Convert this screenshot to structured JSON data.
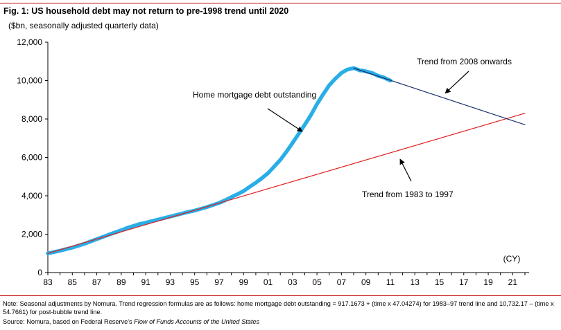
{
  "header": {
    "title": "Fig. 1:  US household debt may not return to pre-1998 trend until 2020",
    "subtitle": "($bn, seasonally adjusted quarterly data)"
  },
  "footer": {
    "note": "Note: Seasonal adjustments by Nomura. Trend regression formulas are as follows: home mortgage debt outstanding = 917.1673 + (time x 47.04274) for 1983–97 trend line and 10,732.17 – (time x 54.7661) for post-bubble trend line.",
    "source_prefix": "Source: Nomura, based on Federal Reserve's ",
    "source_italic": "Flow of Funds Accounts of the United States"
  },
  "colors": {
    "mortgage": "#29aee6",
    "trend_1983_1997": "#e01e1e",
    "trend_2008": "#1a2f6e",
    "rule": "#c00000"
  },
  "chart_data": {
    "type": "line",
    "title": "US household debt may not return to pre-1998 trend until 2020",
    "ylabel": "($bn, seasonally adjusted quarterly data)",
    "xunit": "(CY)",
    "xlim": [
      1983,
      2022
    ],
    "ylim": [
      0,
      12000
    ],
    "yticks": [
      0,
      2000,
      4000,
      6000,
      8000,
      10000,
      12000
    ],
    "ytick_labels": [
      "0",
      "2,000",
      "4,000",
      "6,000",
      "8,000",
      "10,000",
      "12,000"
    ],
    "xticks": [
      1983,
      1985,
      1987,
      1989,
      1991,
      1993,
      1995,
      1997,
      1999,
      2001,
      2003,
      2005,
      2007,
      2009,
      2011,
      2013,
      2015,
      2017,
      2019,
      2021
    ],
    "xtick_labels": [
      "83",
      "85",
      "87",
      "89",
      "91",
      "93",
      "95",
      "97",
      "99",
      "01",
      "03",
      "05",
      "07",
      "09",
      "11",
      "13",
      "15",
      "17",
      "19",
      "21"
    ],
    "grid": false,
    "series": [
      {
        "name": "Home mortgage debt outstanding",
        "x": [
          1983.0,
          1983.5,
          1984.0,
          1984.5,
          1985.0,
          1985.5,
          1986.0,
          1986.5,
          1987.0,
          1987.5,
          1988.0,
          1988.5,
          1989.0,
          1989.5,
          1990.0,
          1990.5,
          1991.0,
          1991.5,
          1992.0,
          1992.5,
          1993.0,
          1993.5,
          1994.0,
          1994.5,
          1995.0,
          1995.5,
          1996.0,
          1996.5,
          1997.0,
          1997.5,
          1998.0,
          1998.5,
          1999.0,
          1999.5,
          2000.0,
          2000.5,
          2001.0,
          2001.5,
          2002.0,
          2002.5,
          2003.0,
          2003.5,
          2004.0,
          2004.5,
          2005.0,
          2005.5,
          2006.0,
          2006.5,
          2007.0,
          2007.5,
          2008.0,
          2008.25,
          2008.5,
          2008.75,
          2009.0,
          2009.5,
          2010.0,
          2010.5,
          2011.0
        ],
        "values": [
          1000,
          1070,
          1140,
          1220,
          1300,
          1400,
          1500,
          1620,
          1740,
          1860,
          1980,
          2090,
          2200,
          2330,
          2430,
          2530,
          2600,
          2680,
          2760,
          2840,
          2920,
          3000,
          3080,
          3160,
          3230,
          3320,
          3410,
          3520,
          3630,
          3770,
          3930,
          4080,
          4250,
          4470,
          4680,
          4920,
          5180,
          5520,
          5870,
          6290,
          6750,
          7220,
          7700,
          8200,
          8780,
          9280,
          9750,
          10100,
          10400,
          10580,
          10650,
          10600,
          10530,
          10520,
          10480,
          10400,
          10250,
          10150,
          10000
        ]
      },
      {
        "name": "Trend from 1983 to 1997",
        "x": [
          1983,
          2022
        ],
        "values": [
          1000,
          8300
        ]
      },
      {
        "name": "Trend from 2008 onwards",
        "x": [
          2008,
          2022
        ],
        "values": [
          10650,
          7700
        ]
      }
    ],
    "annotations": [
      {
        "text": "Home mortgage debt outstanding",
        "arrow_to": [
          2003.8,
          7350
        ]
      },
      {
        "text": "Trend from 2008 onwards",
        "arrow_to": [
          2015.5,
          9350
        ]
      },
      {
        "text": "Trend from 1983 to 1997",
        "arrow_to": [
          2011.8,
          5900
        ]
      }
    ]
  }
}
